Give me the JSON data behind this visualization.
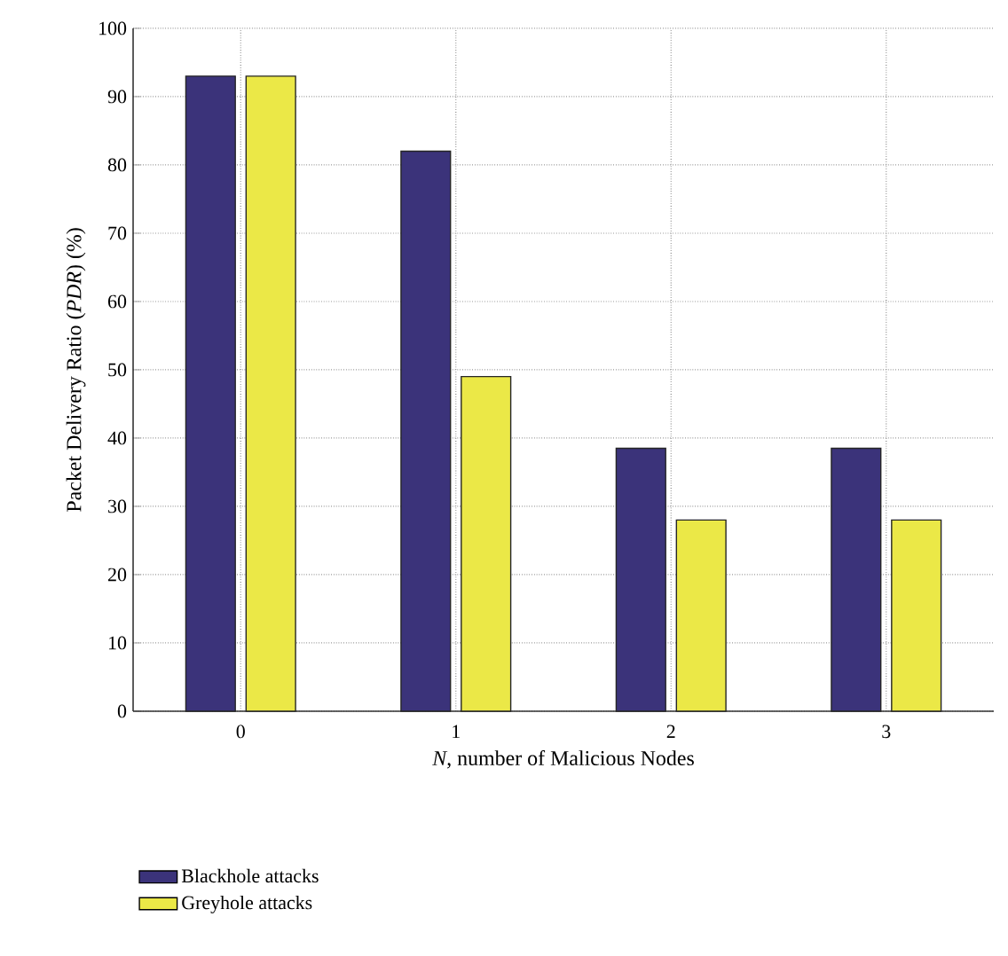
{
  "chart_data": {
    "type": "bar",
    "xlabel": "*N*, number of Malicious Nodes",
    "ylabel": "Packet Delivery Ratio (*PDR*) (%)",
    "categories": [
      "0",
      "1",
      "2",
      "3"
    ],
    "series": [
      {
        "name": "Blackhole attacks",
        "color": "#3b337a",
        "values": [
          93,
          82,
          38.5,
          38.5
        ]
      },
      {
        "name": "Greyhole attacks",
        "color": "#ebe847",
        "values": [
          93,
          49,
          28,
          28
        ]
      }
    ],
    "ylim": [
      0,
      100
    ],
    "yticks": [
      0,
      10,
      20,
      30,
      40,
      50,
      60,
      70,
      80,
      90,
      100
    ],
    "grid": true,
    "legend": "bottom"
  }
}
